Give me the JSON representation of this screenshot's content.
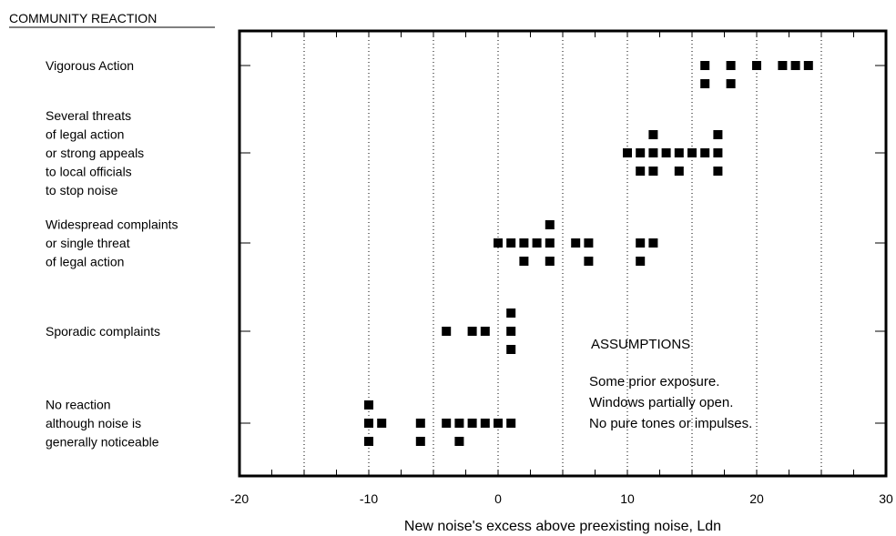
{
  "chart_data": {
    "type": "scatter",
    "y_axis_header": "COMMUNITY REACTION",
    "xlabel": "New noise's excess above preexisting noise, Ldn",
    "xlim": [
      -20,
      30
    ],
    "x_ticks": [
      -20,
      -10,
      0,
      10,
      20,
      30
    ],
    "x_minor_step": 2.5,
    "dotted_gridlines_x": [
      -15,
      -10,
      -5,
      0,
      5,
      10,
      15,
      20,
      25
    ],
    "categories": [
      {
        "lines": [
          "No reaction",
          "although noise is",
          "generally noticeable"
        ]
      },
      {
        "lines": [
          "Sporadic complaints"
        ]
      },
      {
        "lines": [
          "Widespread complaints",
          "or single threat",
          "of legal action"
        ]
      },
      {
        "lines": [
          "Several threats",
          "of legal action",
          "or strong appeals",
          "to local officials",
          "to stop noise"
        ]
      },
      {
        "lines": [
          "Vigorous Action"
        ]
      }
    ],
    "points": [
      {
        "x": -10,
        "category": 0,
        "stack": 1
      },
      {
        "x": -10,
        "category": 0,
        "stack": 0
      },
      {
        "x": -10,
        "category": 0,
        "stack": -1
      },
      {
        "x": -9,
        "category": 0,
        "stack": 0
      },
      {
        "x": -6,
        "category": 0,
        "stack": 0
      },
      {
        "x": -6,
        "category": 0,
        "stack": -1
      },
      {
        "x": -4,
        "category": 0,
        "stack": 0
      },
      {
        "x": -3,
        "category": 0,
        "stack": 0
      },
      {
        "x": -3,
        "category": 0,
        "stack": -1
      },
      {
        "x": -2,
        "category": 0,
        "stack": 0
      },
      {
        "x": -1,
        "category": 0,
        "stack": 0
      },
      {
        "x": 0,
        "category": 0,
        "stack": 0
      },
      {
        "x": 1,
        "category": 0,
        "stack": 0
      },
      {
        "x": -4,
        "category": 1,
        "stack": 0
      },
      {
        "x": -2,
        "category": 1,
        "stack": 0
      },
      {
        "x": -1,
        "category": 1,
        "stack": 0
      },
      {
        "x": 1,
        "category": 1,
        "stack": 1
      },
      {
        "x": 1,
        "category": 1,
        "stack": 0
      },
      {
        "x": 1,
        "category": 1,
        "stack": -1
      },
      {
        "x": 0,
        "category": 2,
        "stack": 0
      },
      {
        "x": 1,
        "category": 2,
        "stack": 0
      },
      {
        "x": 2,
        "category": 2,
        "stack": 0
      },
      {
        "x": 2,
        "category": 2,
        "stack": -1
      },
      {
        "x": 3,
        "category": 2,
        "stack": 0
      },
      {
        "x": 4,
        "category": 2,
        "stack": 1
      },
      {
        "x": 4,
        "category": 2,
        "stack": 0
      },
      {
        "x": 4,
        "category": 2,
        "stack": -1
      },
      {
        "x": 6,
        "category": 2,
        "stack": 0
      },
      {
        "x": 7,
        "category": 2,
        "stack": 0
      },
      {
        "x": 7,
        "category": 2,
        "stack": -1
      },
      {
        "x": 11,
        "category": 2,
        "stack": 0
      },
      {
        "x": 11,
        "category": 2,
        "stack": -1
      },
      {
        "x": 12,
        "category": 2,
        "stack": 0
      },
      {
        "x": 10,
        "category": 3,
        "stack": 0
      },
      {
        "x": 11,
        "category": 3,
        "stack": 0
      },
      {
        "x": 11,
        "category": 3,
        "stack": -1
      },
      {
        "x": 12,
        "category": 3,
        "stack": 1
      },
      {
        "x": 12,
        "category": 3,
        "stack": 0
      },
      {
        "x": 12,
        "category": 3,
        "stack": -1
      },
      {
        "x": 13,
        "category": 3,
        "stack": 0
      },
      {
        "x": 14,
        "category": 3,
        "stack": 0
      },
      {
        "x": 14,
        "category": 3,
        "stack": -1
      },
      {
        "x": 15,
        "category": 3,
        "stack": 0
      },
      {
        "x": 16,
        "category": 3,
        "stack": 0
      },
      {
        "x": 17,
        "category": 3,
        "stack": 1
      },
      {
        "x": 17,
        "category": 3,
        "stack": 0
      },
      {
        "x": 17,
        "category": 3,
        "stack": -1
      },
      {
        "x": 16,
        "category": 4,
        "stack": 0
      },
      {
        "x": 16,
        "category": 4,
        "stack": -1
      },
      {
        "x": 18,
        "category": 4,
        "stack": 0
      },
      {
        "x": 18,
        "category": 4,
        "stack": -1
      },
      {
        "x": 20,
        "category": 4,
        "stack": 0
      },
      {
        "x": 22,
        "category": 4,
        "stack": 0
      },
      {
        "x": 23,
        "category": 4,
        "stack": 0
      },
      {
        "x": 24,
        "category": 4,
        "stack": 0
      }
    ],
    "assumptions": {
      "title": "ASSUMPTIONS",
      "lines": [
        "Some prior exposure.",
        "Windows partially open.",
        "No pure tones or impulses."
      ]
    },
    "legend": "none",
    "grid": "dotted-vertical"
  }
}
